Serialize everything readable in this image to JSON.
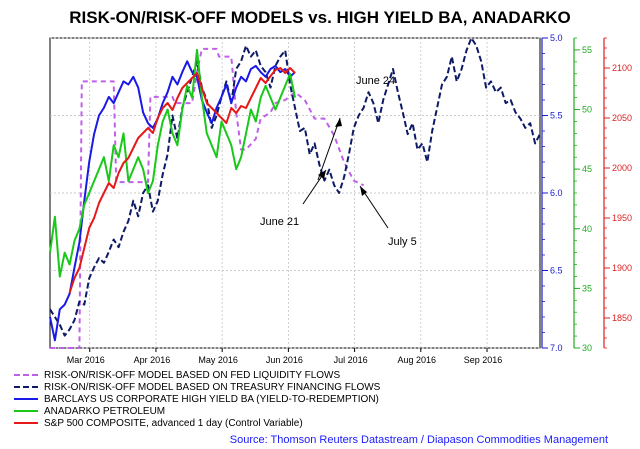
{
  "chart_data": {
    "type": "line",
    "title": "RISK-ON/RISK-OFF MODELS vs. HIGH YIELD BA, ANADARKO",
    "x_ticks": [
      "Mar 2016",
      "Apr 2016",
      "May 2016",
      "Jun 2016",
      "Jul 2016",
      "Aug 2016",
      "Sep 2016"
    ],
    "axes": {
      "blue": {
        "min": 5.0,
        "max": 7.0,
        "inverted": true,
        "ticks": [
          "5.0",
          "5.5",
          "6.0",
          "6.5",
          "7.0"
        ],
        "color": "#1a1acc"
      },
      "green": {
        "min": 30,
        "max": 56,
        "ticks": [
          "30",
          "35",
          "40",
          "45",
          "50",
          "55"
        ],
        "color": "#22aa22"
      },
      "red": {
        "min": 1820,
        "max": 2130,
        "ticks": [
          "1850",
          "1900",
          "1950",
          "2000",
          "2050",
          "2100"
        ],
        "color": "#dd2222"
      }
    },
    "series": [
      {
        "name": "RISK-ON/RISK-OFF MODEL BASED ON FED LIQUIDITY FLOWS",
        "axis": "blue",
        "color": "#c060e8",
        "dash": "5,4",
        "x": [
          0,
          0.03,
          0.06,
          0.065,
          0.09,
          0.13,
          0.135,
          0.17,
          0.2,
          0.205,
          0.22,
          0.25,
          0.255,
          0.29,
          0.3,
          0.31,
          0.34,
          0.345,
          0.37,
          0.38,
          0.39,
          0.4,
          0.42,
          0.43,
          0.45,
          0.46,
          0.48,
          0.5,
          0.52,
          0.54,
          0.56,
          0.58,
          0.6,
          0.62,
          0.64
        ],
        "values": [
          7.0,
          7.0,
          7.0,
          5.28,
          5.28,
          5.28,
          5.93,
          5.93,
          5.93,
          5.38,
          5.38,
          5.38,
          5.42,
          5.42,
          5.22,
          5.07,
          5.07,
          5.12,
          5.12,
          5.48,
          5.72,
          5.72,
          5.65,
          5.52,
          5.48,
          5.42,
          5.4,
          5.35,
          5.4,
          5.52,
          5.52,
          5.63,
          5.8,
          5.92,
          5.95
        ]
      },
      {
        "name": "RISK-ON/RISK-OFF MODEL BASED ON TREASURY FINANCING FLOWS",
        "axis": "blue",
        "color": "#0d1a66",
        "dash": "6,3",
        "x": [
          0,
          0.01,
          0.02,
          0.03,
          0.04,
          0.05,
          0.06,
          0.07,
          0.08,
          0.09,
          0.1,
          0.11,
          0.12,
          0.13,
          0.14,
          0.15,
          0.16,
          0.17,
          0.18,
          0.19,
          0.2,
          0.21,
          0.22,
          0.23,
          0.24,
          0.25,
          0.26,
          0.27,
          0.28,
          0.29,
          0.3,
          0.31,
          0.32,
          0.33,
          0.34,
          0.35,
          0.36,
          0.37,
          0.38,
          0.39,
          0.4,
          0.41,
          0.42,
          0.43,
          0.44,
          0.45,
          0.46,
          0.47,
          0.48,
          0.49,
          0.5,
          0.51,
          0.52,
          0.53,
          0.54,
          0.55,
          0.56,
          0.57,
          0.58,
          0.59,
          0.6,
          0.61,
          0.62,
          0.63,
          0.64,
          0.65,
          0.66,
          0.67,
          0.68,
          0.69,
          0.7,
          0.71,
          0.72,
          0.73,
          0.74,
          0.75,
          0.76,
          0.77,
          0.78,
          0.79,
          0.8,
          0.81,
          0.82,
          0.83,
          0.84,
          0.85,
          0.86,
          0.87,
          0.88,
          0.89,
          0.9,
          0.91,
          0.92,
          0.93,
          0.94,
          0.95,
          0.96,
          0.97,
          0.98,
          0.99,
          1.0
        ],
        "values": [
          6.75,
          6.8,
          6.85,
          6.92,
          6.88,
          6.82,
          6.7,
          6.72,
          6.55,
          6.48,
          6.42,
          6.45,
          6.38,
          6.3,
          6.35,
          6.25,
          6.18,
          6.05,
          6.15,
          6.0,
          5.95,
          6.12,
          6.05,
          5.88,
          5.75,
          5.5,
          5.65,
          5.45,
          5.35,
          5.25,
          5.15,
          5.32,
          5.4,
          5.58,
          5.5,
          5.38,
          5.28,
          5.42,
          5.2,
          5.15,
          5.05,
          5.12,
          5.08,
          5.18,
          5.22,
          5.32,
          5.18,
          5.12,
          5.08,
          5.3,
          5.45,
          5.6,
          5.58,
          5.75,
          5.68,
          5.82,
          5.92,
          5.85,
          5.95,
          6.0,
          5.9,
          5.75,
          5.58,
          5.5,
          5.45,
          5.35,
          5.42,
          5.55,
          5.4,
          5.3,
          5.2,
          5.35,
          5.48,
          5.62,
          5.55,
          5.72,
          5.68,
          5.8,
          5.6,
          5.45,
          5.3,
          5.25,
          5.12,
          5.28,
          5.2,
          5.08,
          5.0,
          5.05,
          5.15,
          5.32,
          5.28,
          5.35,
          5.32,
          5.42,
          5.4,
          5.48,
          5.52,
          5.58,
          5.55,
          5.68,
          5.62
        ]
      },
      {
        "name": "BARCLAYS US CORPORATE HIGH YIELD BA (YIELD-TO-REDEMPTION)",
        "axis": "blue",
        "color": "#1a1ae6",
        "dash": "",
        "x": [
          0,
          0.01,
          0.02,
          0.03,
          0.04,
          0.05,
          0.06,
          0.07,
          0.08,
          0.09,
          0.1,
          0.11,
          0.12,
          0.13,
          0.14,
          0.15,
          0.16,
          0.17,
          0.18,
          0.19,
          0.2,
          0.21,
          0.22,
          0.23,
          0.24,
          0.25,
          0.26,
          0.27,
          0.28,
          0.29,
          0.3,
          0.31,
          0.32,
          0.33,
          0.34,
          0.35,
          0.36,
          0.37,
          0.38,
          0.39,
          0.4,
          0.41,
          0.42,
          0.43,
          0.44,
          0.45,
          0.46,
          0.47,
          0.48,
          0.49,
          0.5
        ],
        "values": [
          6.8,
          6.95,
          6.75,
          6.72,
          6.65,
          6.48,
          6.32,
          6.05,
          5.8,
          5.62,
          5.5,
          5.45,
          5.38,
          5.42,
          5.35,
          5.28,
          5.3,
          5.25,
          5.32,
          5.48,
          5.55,
          5.58,
          5.52,
          5.42,
          5.35,
          5.25,
          5.3,
          5.22,
          5.15,
          5.22,
          5.25,
          5.4,
          5.48,
          5.55,
          5.45,
          5.38,
          5.3,
          5.42,
          5.32,
          5.25,
          5.28,
          5.2,
          5.18,
          5.22,
          5.25,
          5.2,
          5.18,
          5.22,
          5.2,
          5.25,
          5.22
        ]
      },
      {
        "name": "ANADARKO PETROLEUM",
        "axis": "green",
        "color": "#19c819",
        "dash": "",
        "x": [
          0,
          0.01,
          0.02,
          0.03,
          0.04,
          0.05,
          0.06,
          0.07,
          0.08,
          0.09,
          0.1,
          0.11,
          0.12,
          0.13,
          0.14,
          0.15,
          0.16,
          0.17,
          0.18,
          0.19,
          0.2,
          0.21,
          0.22,
          0.23,
          0.24,
          0.25,
          0.26,
          0.27,
          0.28,
          0.29,
          0.3,
          0.31,
          0.32,
          0.33,
          0.34,
          0.35,
          0.36,
          0.37,
          0.38,
          0.39,
          0.4,
          0.41,
          0.42,
          0.43,
          0.44,
          0.45,
          0.46,
          0.47,
          0.48,
          0.49,
          0.5
        ],
        "values": [
          38,
          41,
          36,
          38,
          37,
          39,
          40,
          42,
          43,
          44,
          45,
          46,
          44,
          47,
          46,
          48,
          44,
          45,
          46,
          45,
          43,
          44,
          47,
          49,
          50,
          48,
          47,
          50,
          52,
          51,
          55,
          51,
          48,
          47,
          46,
          49,
          48,
          47,
          45,
          46,
          48,
          50,
          49,
          51,
          52,
          51,
          50,
          51,
          52,
          53,
          51
        ]
      },
      {
        "name": "S&P 500 COMPOSITE, advanced 1 day (Control Variable)",
        "axis": "red",
        "color": "#e61919",
        "dash": "",
        "x": [
          0.04,
          0.05,
          0.06,
          0.07,
          0.08,
          0.09,
          0.1,
          0.11,
          0.12,
          0.13,
          0.14,
          0.15,
          0.16,
          0.17,
          0.18,
          0.19,
          0.2,
          0.21,
          0.22,
          0.23,
          0.24,
          0.25,
          0.26,
          0.27,
          0.28,
          0.29,
          0.3,
          0.31,
          0.32,
          0.33,
          0.34,
          0.35,
          0.36,
          0.37,
          0.38,
          0.39,
          0.4,
          0.41,
          0.42,
          0.43,
          0.44,
          0.45,
          0.46,
          0.47,
          0.48,
          0.49,
          0.5
        ],
        "values": [
          1875,
          1890,
          1900,
          1920,
          1940,
          1950,
          1965,
          1975,
          1985,
          1980,
          1995,
          2005,
          2010,
          2020,
          2030,
          2035,
          2040,
          2035,
          2050,
          2060,
          2065,
          2058,
          2070,
          2080,
          2085,
          2090,
          2095,
          2080,
          2065,
          2060,
          2055,
          2050,
          2045,
          2060,
          2055,
          2062,
          2060,
          2070,
          2080,
          2090,
          2085,
          2092,
          2098,
          2100,
          2095,
          2100,
          2095
        ]
      }
    ],
    "annotations": [
      {
        "label": "June 24"
      },
      {
        "label": "June 21"
      },
      {
        "label": "July 5"
      }
    ]
  },
  "source": "Source: Thomson Reuters Datastream / Diapason Commodities Management"
}
